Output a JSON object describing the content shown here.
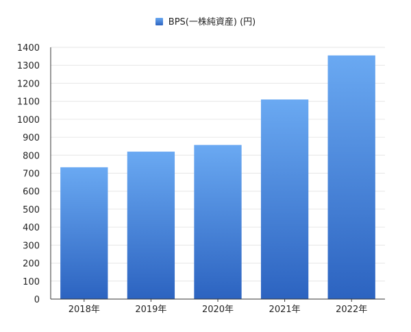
{
  "chart_data": {
    "type": "bar",
    "categories": [
      "2018年",
      "2019年",
      "2020年",
      "2021年",
      "2022年"
    ],
    "series": [
      {
        "name": "BPS(一株純資産) (円)",
        "values": [
          733,
          820,
          857,
          1110,
          1355
        ]
      }
    ],
    "ylim": [
      0,
      1400
    ],
    "y_ticks": [
      0,
      100,
      200,
      300,
      400,
      500,
      600,
      700,
      800,
      900,
      1000,
      1100,
      1200,
      1300,
      1400
    ],
    "grid": true,
    "legend_position": "top-center",
    "colors": {
      "bar_top": "#6aa9f2",
      "bar_bottom": "#2c63c0",
      "grid": "#e6e6e6",
      "axis": "#333333"
    }
  }
}
